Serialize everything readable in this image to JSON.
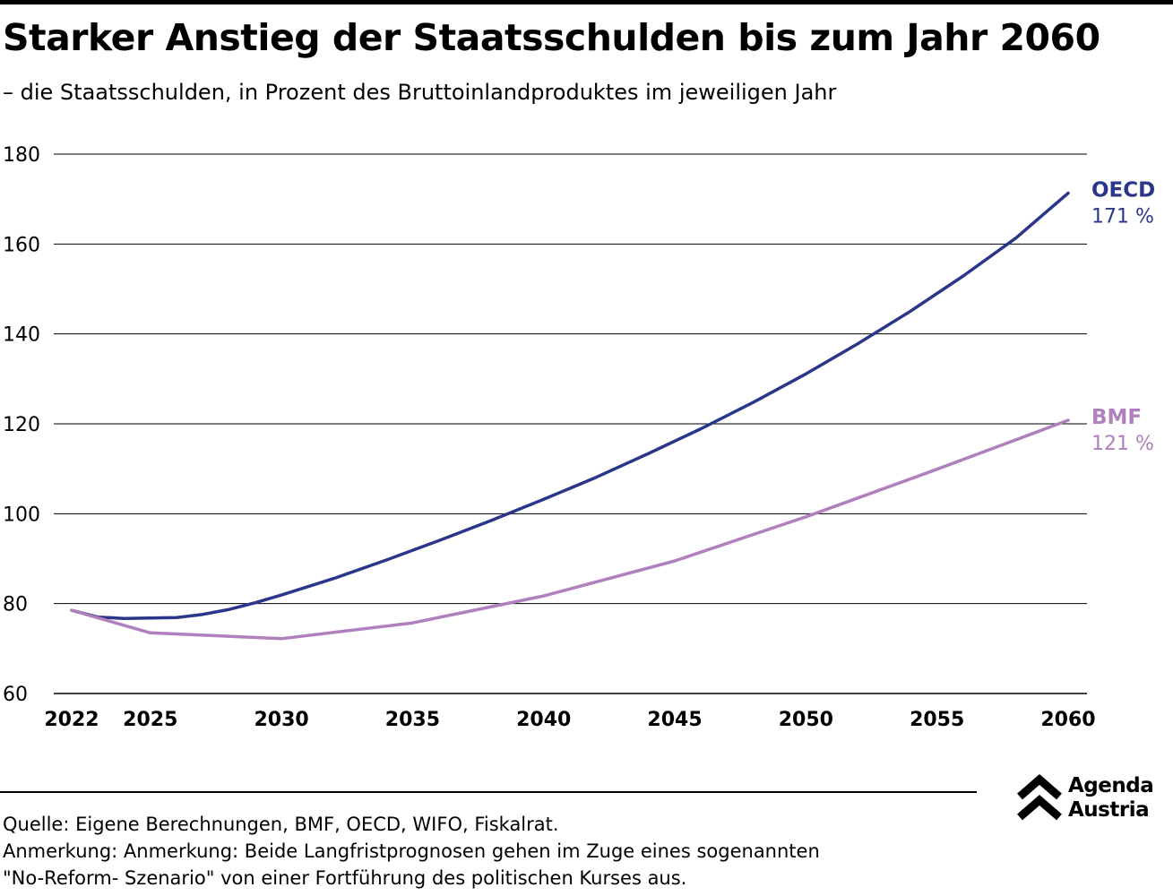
{
  "title": "Starker Anstieg der Staatsschulden bis zum Jahr 2060",
  "subtitle": "– die Staatsschulden, in Prozent des Bruttoinlandproduktes im jeweiligen Jahr",
  "chart_data": {
    "type": "line",
    "title": "Starker Anstieg der Staatsschulden bis zum Jahr 2060",
    "subtitle": "– die Staatsschulden, in Prozent des Bruttoinlandproduktes im jeweiligen Jahr",
    "xlim": [
      2022,
      2060
    ],
    "ylim": [
      60,
      180
    ],
    "xticks": [
      2022,
      2025,
      2030,
      2035,
      2040,
      2045,
      2050,
      2055,
      2060
    ],
    "yticks": [
      60,
      80,
      100,
      120,
      140,
      160,
      180
    ],
    "grid": "horizontal",
    "legend": "end-of-line labels",
    "series": [
      {
        "name": "OECD",
        "end_label": "171 %",
        "color": "#2b3589",
        "x": [
          2022,
          2023,
          2024,
          2025,
          2026,
          2027,
          2028,
          2029,
          2030,
          2032,
          2034,
          2036,
          2038,
          2040,
          2042,
          2044,
          2046,
          2048,
          2050,
          2052,
          2054,
          2056,
          2058,
          2060
        ],
        "y": [
          78.5,
          77.0,
          76.7,
          76.8,
          76.9,
          77.6,
          78.7,
          80.2,
          81.9,
          85.6,
          89.7,
          94.0,
          98.5,
          103.2,
          108.1,
          113.4,
          118.9,
          124.8,
          131.1,
          137.9,
          145.1,
          152.9,
          161.3,
          171.3
        ]
      },
      {
        "name": "BMF",
        "end_label": "121 %",
        "color": "#b07fbd",
        "x": [
          2022,
          2025,
          2030,
          2035,
          2040,
          2045,
          2050,
          2055,
          2060
        ],
        "y": [
          78.5,
          73.5,
          72.2,
          75.7,
          81.7,
          89.5,
          99.3,
          109.9,
          120.8
        ]
      }
    ]
  },
  "notes": {
    "source": "Quelle: Eigene Berechnungen, BMF, OECD, WIFO, Fiskalrat.",
    "remark_line1": "Anmerkung: Anmerkung: Beide Langfristprognosen gehen im Zuge eines sogenannten",
    "remark_line2": "\"No-Reform- Szenario\" von einer Fortführung des politischen Kurses aus."
  },
  "logo": {
    "line1": "Agenda",
    "line2": "Austria",
    "icon": "double-chevron-up-icon"
  }
}
